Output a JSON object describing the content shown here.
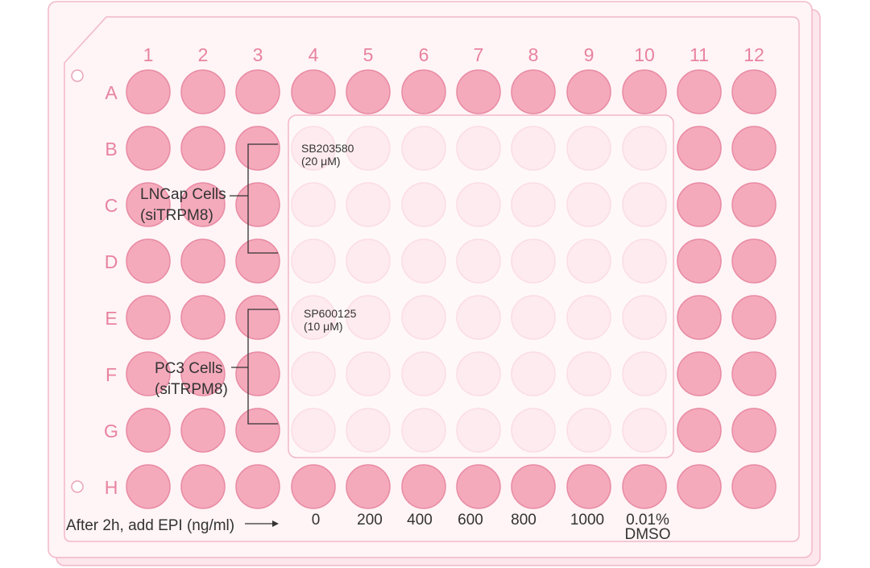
{
  "plate": {
    "columns": [
      "1",
      "2",
      "3",
      "4",
      "5",
      "6",
      "7",
      "8",
      "9",
      "10",
      "11",
      "12"
    ],
    "rows": [
      "A",
      "B",
      "C",
      "D",
      "E",
      "F",
      "G",
      "H"
    ]
  },
  "colors": {
    "plate_fill": "#fff4f6",
    "plate_stroke": "#f2b8c8",
    "well_fill": "#f4aabb",
    "well_stroke": "#e88aa3",
    "faded_well_fill": "#fde0e7",
    "faded_well_stroke": "#f8cbd6",
    "label_color": "#e8839f",
    "text_color": "#333333"
  },
  "treated_region": {
    "rows": [
      "B",
      "C",
      "D",
      "E",
      "F",
      "G"
    ],
    "columns": [
      "4",
      "5",
      "6",
      "7",
      "8",
      "9",
      "10"
    ]
  },
  "inhibitors": [
    {
      "name": "SB203580",
      "conc": "(20 μM)"
    },
    {
      "name": "SP600125",
      "conc": "(10 μM)"
    }
  ],
  "cell_groups": [
    {
      "line1": "LNCap Cells",
      "line2": "(siTRPM8)"
    },
    {
      "line1": "PC3 Cells",
      "line2": "(siTRPM8)"
    }
  ],
  "treatment": {
    "label": "After 2h, add EPI (ng/ml)",
    "doses": [
      "0",
      "200",
      "400",
      "600",
      "800",
      "1000",
      "0.01%"
    ],
    "dmso": "DMSO"
  }
}
